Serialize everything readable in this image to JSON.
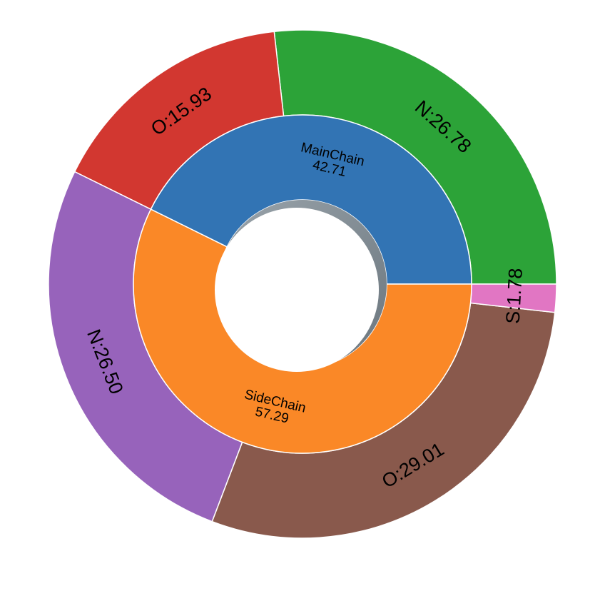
{
  "chart_data": {
    "type": "sunburst",
    "title": "",
    "inner_ring": [
      {
        "name": "MainChain",
        "value": 42.71,
        "label_value": "42.71",
        "color": "#3274b4"
      },
      {
        "name": "SideChain",
        "value": 57.29,
        "label_value": "57.29",
        "color": "#fa8827"
      }
    ],
    "outer_ring": [
      {
        "label": "N:26.78",
        "value": 26.78,
        "parent": "MainChain",
        "color": "#2ca338"
      },
      {
        "label": "O:15.93",
        "value": 15.93,
        "parent": "MainChain",
        "color": "#d23730"
      },
      {
        "label": "N:26.50",
        "value": 26.5,
        "parent": "SideChain",
        "color": "#9763bb"
      },
      {
        "label": "O:29.01",
        "value": 29.01,
        "parent": "SideChain",
        "color": "#89594c"
      },
      {
        "label": "S:1.78",
        "value": 1.78,
        "parent": "SideChain",
        "color": "#e176c3"
      }
    ],
    "start_angle_deg": 0,
    "direction": "counterclockwise"
  }
}
